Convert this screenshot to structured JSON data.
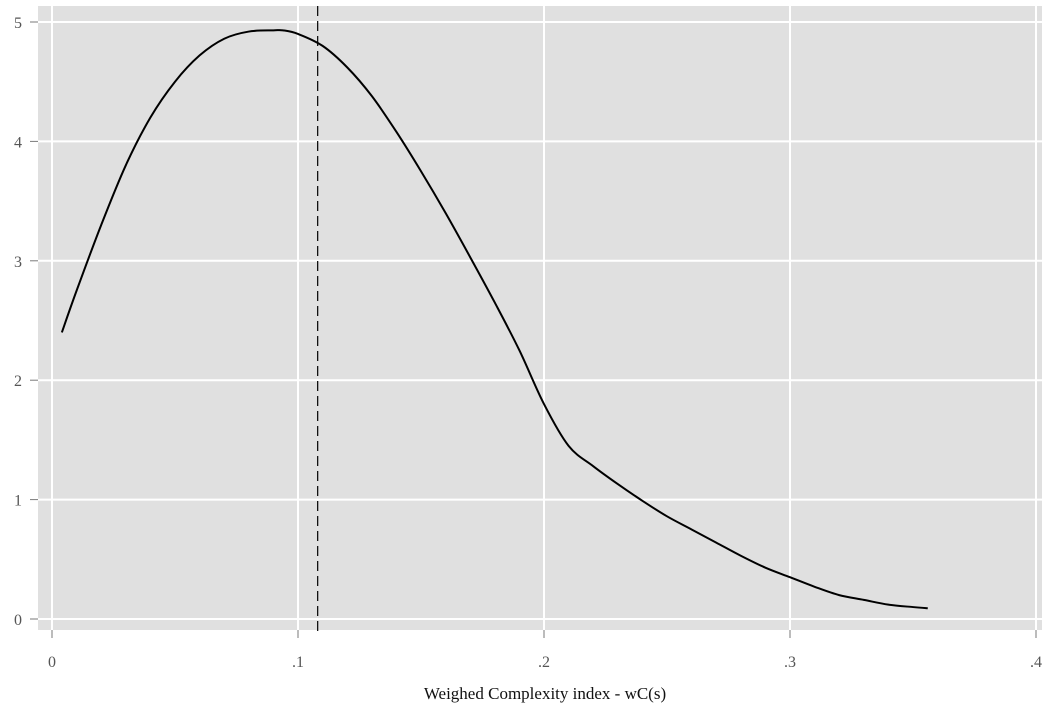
{
  "chart_data": {
    "type": "line",
    "title": "",
    "xlabel": "Weighed Complexity index - wC(s)",
    "ylabel": "",
    "xlim": [
      0,
      0.4
    ],
    "ylim": [
      0,
      5
    ],
    "x_ticks": [
      {
        "value": 0,
        "label": "0"
      },
      {
        "value": 0.1,
        "label": ".1"
      },
      {
        "value": 0.2,
        "label": ".2"
      },
      {
        "value": 0.3,
        "label": ".3"
      },
      {
        "value": 0.4,
        "label": ".4"
      }
    ],
    "y_ticks": [
      {
        "value": 0,
        "label": "0"
      },
      {
        "value": 1,
        "label": "1"
      },
      {
        "value": 2,
        "label": "2"
      },
      {
        "value": 3,
        "label": "3"
      },
      {
        "value": 4,
        "label": "4"
      },
      {
        "value": 5,
        "label": "5"
      }
    ],
    "grid": true,
    "background": "#e0e0e0",
    "gridline_color": "#ffffff",
    "line_color": "#000000",
    "reference_line": {
      "x": 0.108,
      "style": "dashed",
      "color": "#000000"
    },
    "series": [
      {
        "x": [
          0.004,
          0.01,
          0.02,
          0.03,
          0.04,
          0.05,
          0.06,
          0.07,
          0.08,
          0.09,
          0.094,
          0.1,
          0.11,
          0.12,
          0.13,
          0.14,
          0.15,
          0.16,
          0.17,
          0.18,
          0.19,
          0.2,
          0.21,
          0.22,
          0.23,
          0.24,
          0.25,
          0.26,
          0.27,
          0.28,
          0.29,
          0.3,
          0.31,
          0.32,
          0.33,
          0.34,
          0.35,
          0.356
        ],
        "y": [
          2.4,
          2.75,
          3.3,
          3.8,
          4.2,
          4.5,
          4.72,
          4.86,
          4.92,
          4.93,
          4.93,
          4.9,
          4.8,
          4.62,
          4.38,
          4.08,
          3.75,
          3.4,
          3.03,
          2.65,
          2.25,
          1.8,
          1.45,
          1.28,
          1.13,
          0.99,
          0.86,
          0.75,
          0.64,
          0.53,
          0.43,
          0.35,
          0.27,
          0.2,
          0.16,
          0.12,
          0.1,
          0.09
        ]
      }
    ]
  }
}
